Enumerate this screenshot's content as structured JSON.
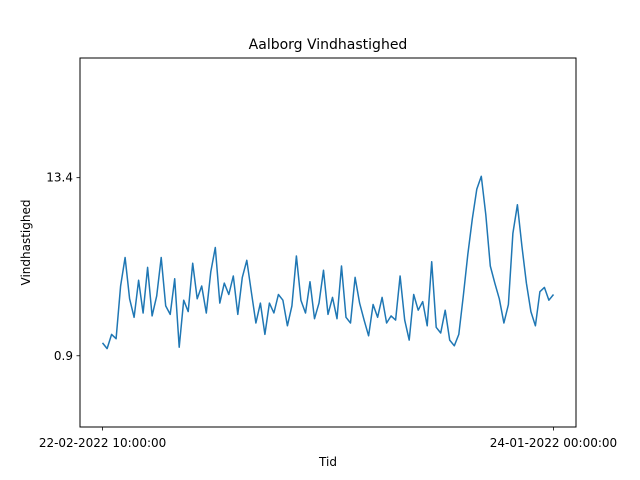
{
  "chart_data": {
    "type": "line",
    "title": "Aalborg Vindhastighed",
    "xlabel": "Tid",
    "ylabel": "Vindhastighed",
    "x_ticks": [
      "22-02-2022 10:00:00",
      "24-01-2022 00:00:00"
    ],
    "y_ticks": [
      "0.9",
      "13.4"
    ],
    "ylim": [
      -4.1,
      21.8
    ],
    "xlim": [
      -0.05,
      1.05
    ],
    "grid": false,
    "legend": "none",
    "series": [
      {
        "color": "#1f77b4",
        "x": [
          0.0,
          0.01,
          0.02,
          0.03,
          0.04,
          0.05,
          0.06,
          0.07,
          0.08,
          0.09,
          0.1,
          0.11,
          0.12,
          0.13,
          0.14,
          0.15,
          0.16,
          0.17,
          0.18,
          0.19,
          0.2,
          0.21,
          0.22,
          0.23,
          0.24,
          0.25,
          0.26,
          0.27,
          0.28,
          0.29,
          0.3,
          0.31,
          0.32,
          0.33,
          0.34,
          0.35,
          0.36,
          0.37,
          0.38,
          0.39,
          0.4,
          0.41,
          0.42,
          0.43,
          0.44,
          0.45,
          0.46,
          0.47,
          0.48,
          0.49,
          0.5,
          0.51,
          0.52,
          0.53,
          0.54,
          0.55,
          0.56,
          0.57,
          0.58,
          0.59,
          0.6,
          0.61,
          0.62,
          0.63,
          0.64,
          0.65,
          0.66,
          0.67,
          0.68,
          0.69,
          0.7,
          0.71,
          0.72,
          0.73,
          0.74,
          0.75,
          0.76,
          0.77,
          0.78,
          0.79,
          0.8,
          0.81,
          0.82,
          0.83,
          0.84,
          0.85,
          0.86,
          0.87,
          0.88,
          0.89,
          0.9,
          0.91,
          0.92,
          0.93,
          0.94,
          0.95,
          0.96,
          0.97,
          0.98,
          0.99,
          1.0
        ],
        "y": [
          1.8,
          1.4,
          2.4,
          2.1,
          5.8,
          7.8,
          4.9,
          3.6,
          6.2,
          3.9,
          7.1,
          3.7,
          5.1,
          7.8,
          4.4,
          3.8,
          6.3,
          1.5,
          4.8,
          4.0,
          7.4,
          4.9,
          5.8,
          3.9,
          6.8,
          8.5,
          4.6,
          6.0,
          5.2,
          6.5,
          3.8,
          6.4,
          7.6,
          5.4,
          3.2,
          4.6,
          2.4,
          4.6,
          3.9,
          5.2,
          4.8,
          3.0,
          4.4,
          7.9,
          4.8,
          3.9,
          6.1,
          3.5,
          4.6,
          6.9,
          3.8,
          5.0,
          3.5,
          7.2,
          3.6,
          3.2,
          6.4,
          4.6,
          3.4,
          2.3,
          4.5,
          3.6,
          5.0,
          3.2,
          3.7,
          3.4,
          6.5,
          3.4,
          2.0,
          5.2,
          4.1,
          4.7,
          3.0,
          7.5,
          2.9,
          2.5,
          4.1,
          2.0,
          1.6,
          2.4,
          5.1,
          8.0,
          10.5,
          12.6,
          13.5,
          10.8,
          7.2,
          6.0,
          4.9,
          3.2,
          4.5,
          9.5,
          11.5,
          8.6,
          6.0,
          4.0,
          3.0,
          5.4,
          5.7,
          4.8,
          5.2
        ]
      }
    ]
  }
}
